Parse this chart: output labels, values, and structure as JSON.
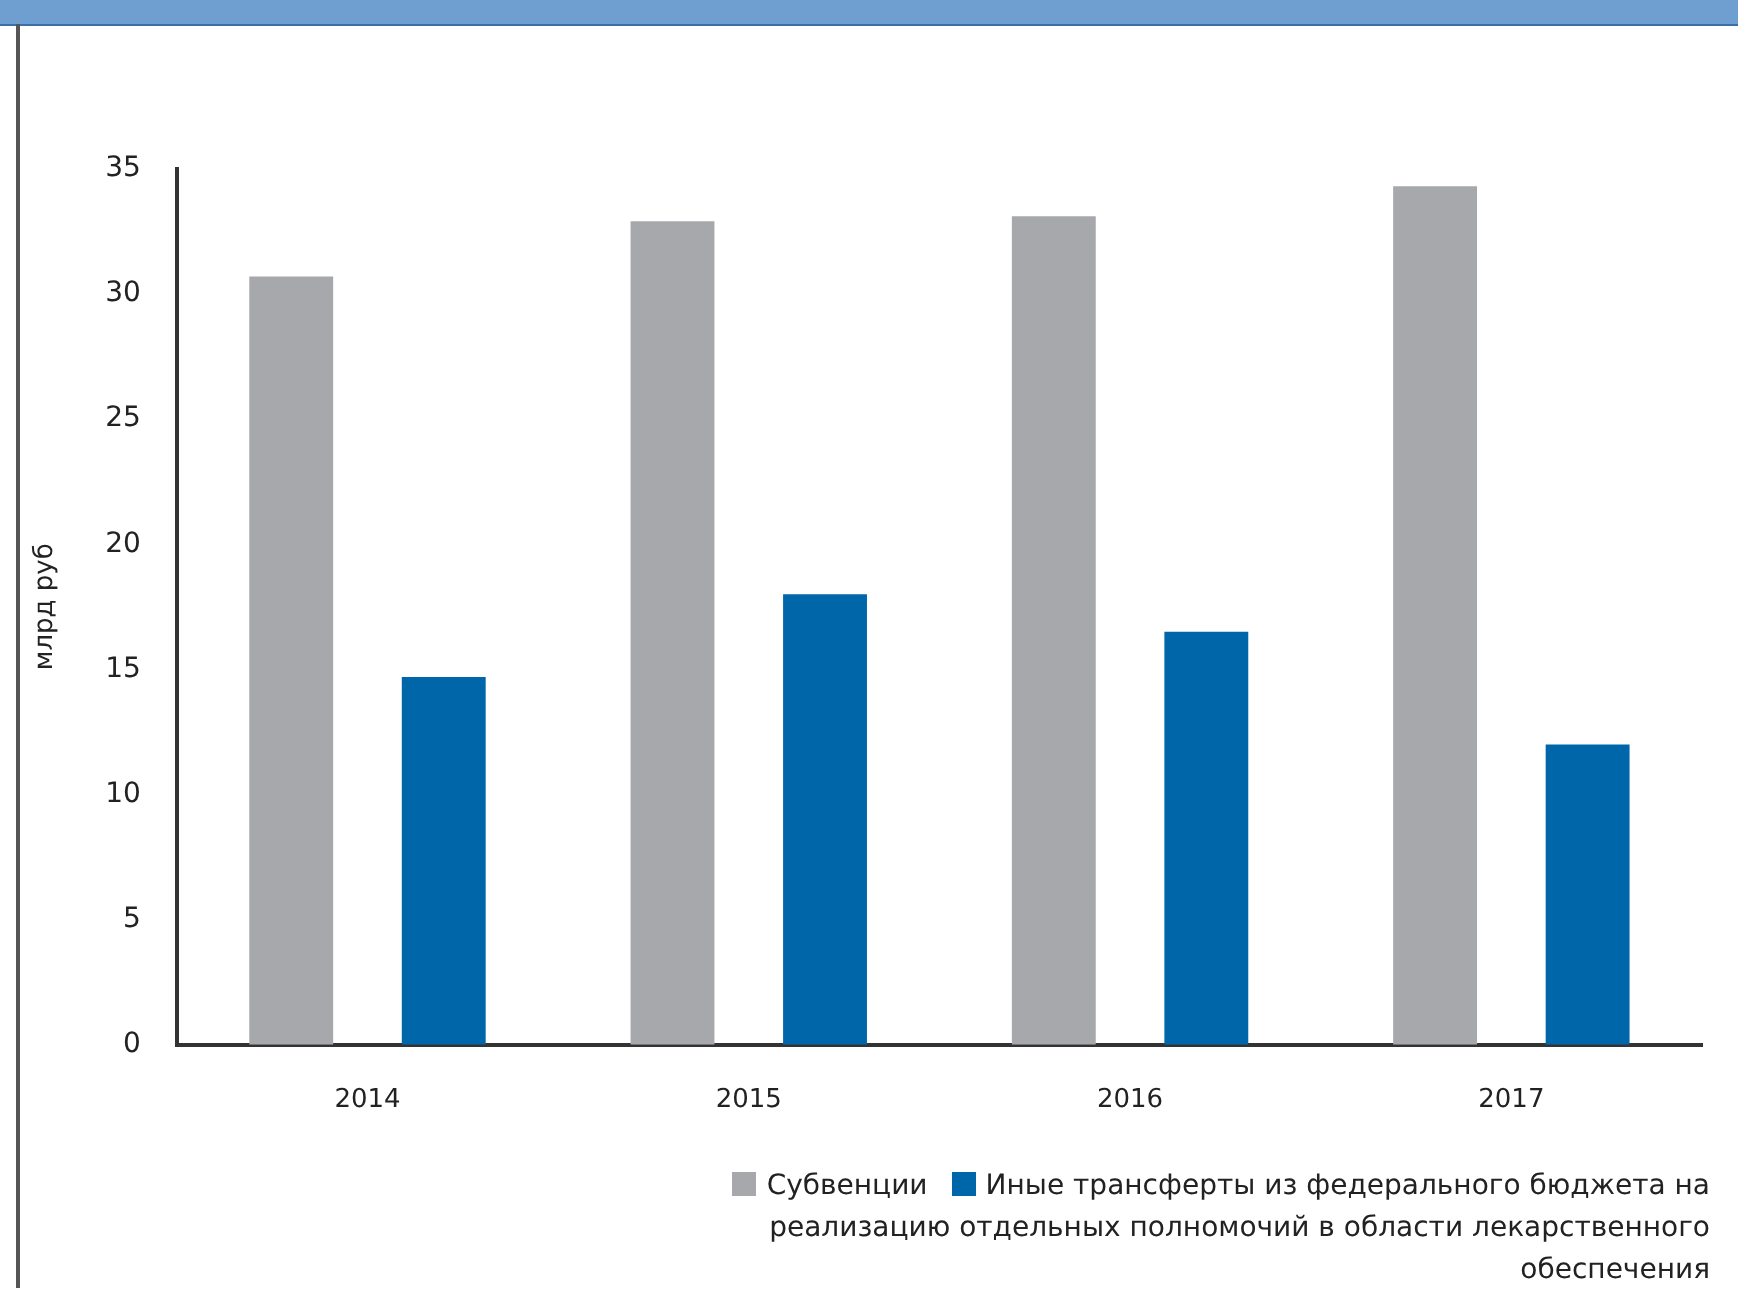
{
  "chart_data": {
    "type": "bar",
    "categories": [
      "2014",
      "2015",
      "2016",
      "2017"
    ],
    "ylabel": "млрд руб",
    "series": [
      {
        "name": "Субвенции",
        "color": "#a7a8ab",
        "values": [
          30.7,
          32.9,
          33.1,
          34.3
        ]
      },
      {
        "name": "Иные трансферты из  федерального бюджета на реализацию отдельных полномочий в области лекарственного обеспечения",
        "color": "#0066aa",
        "values": [
          14.7,
          18.0,
          16.5,
          12.0
        ]
      }
    ],
    "ylim": [
      0,
      35
    ],
    "yticks": [
      0,
      5,
      10,
      15,
      20,
      25,
      30,
      35
    ],
    "grid": false,
    "legend": "bottom right"
  }
}
